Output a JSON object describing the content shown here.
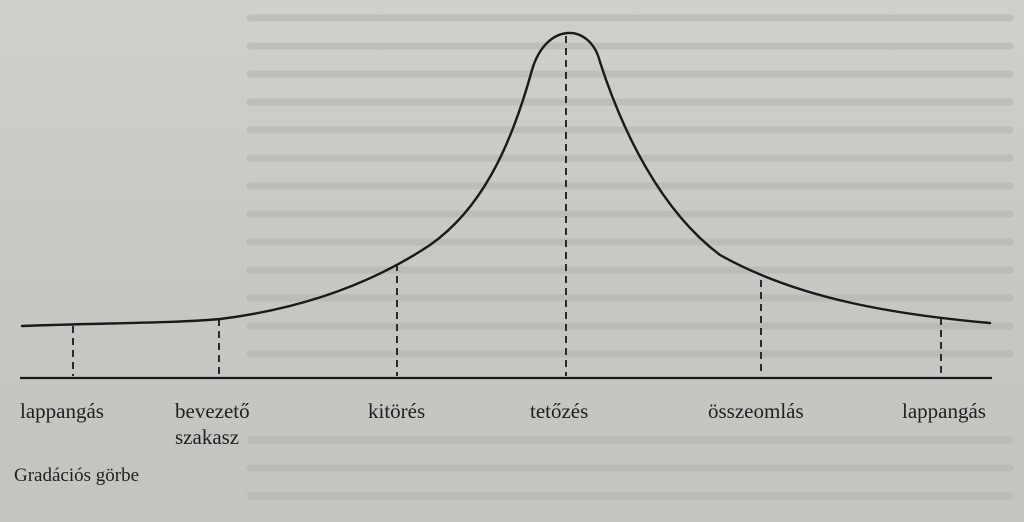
{
  "figure": {
    "caption": "Gradációs görbe",
    "phases": [
      {
        "line1": "lappangás",
        "line2": ""
      },
      {
        "line1": "bevezető",
        "line2": "szakasz"
      },
      {
        "line1": "kitörés",
        "line2": ""
      },
      {
        "line1": "tetőzés",
        "line2": ""
      },
      {
        "line1": "összeomlás",
        "line2": ""
      },
      {
        "line1": "lappangás",
        "line2": ""
      }
    ]
  },
  "colors": {
    "ink": "#1a1a1a",
    "paper": "#c9c9c5"
  }
}
